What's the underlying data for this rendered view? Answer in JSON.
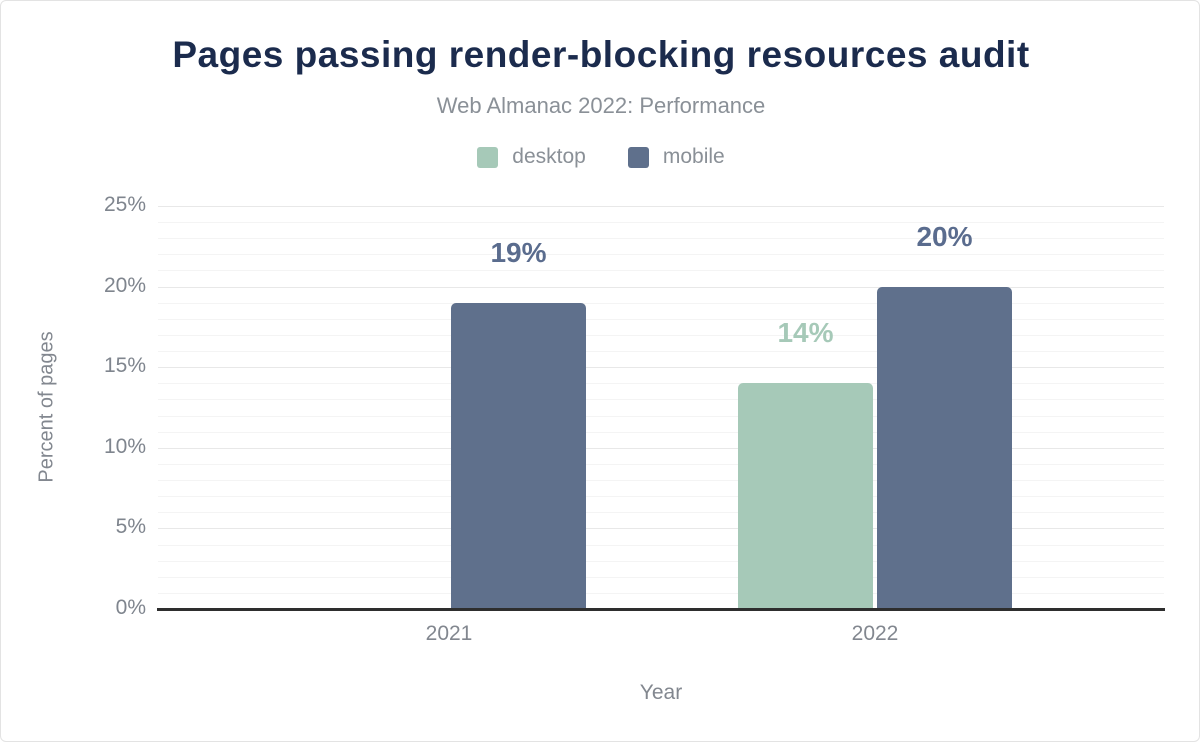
{
  "header": {
    "title": "Pages passing render-blocking resources audit",
    "subtitle": "Web Almanac 2022: Performance"
  },
  "colors": {
    "title": "#1b2b4d",
    "subtitle_gray": "#8a9097",
    "tick_gray": "#7f858e",
    "desktop": "#a6c9b8",
    "mobile": "#5f708c",
    "desktop_label": "#a6c9b8",
    "mobile_label": "#5a6c8e",
    "axis_line": "#2e2e2e",
    "grid_minor": "#f4f4f4",
    "grid_major": "#e8e8e8"
  },
  "chart_data": {
    "type": "bar",
    "title": "Pages passing render-blocking resources audit",
    "subtitle": "Web Almanac 2022: Performance",
    "categories": [
      "2021",
      "2022"
    ],
    "series": [
      {
        "name": "desktop",
        "color": "#a6c9b8",
        "label_color": "#a6c9b8",
        "values": [
          null,
          14
        ],
        "data_labels": [
          "",
          "14%"
        ]
      },
      {
        "name": "mobile",
        "color": "#5f708c",
        "label_color": "#5a6c8e",
        "values": [
          19,
          20
        ],
        "data_labels": [
          "19%",
          "20%"
        ]
      }
    ],
    "xlabel": "Year",
    "ylabel": "Percent of pages",
    "ylim": [
      0,
      25
    ],
    "yticks": [
      0,
      5,
      10,
      15,
      20,
      25
    ],
    "ytick_labels": [
      "0%",
      "5%",
      "10%",
      "15%",
      "20%",
      "25%"
    ],
    "grid": "horizontal minor lines every 1%, major lines every 5%",
    "legend_position": "top center"
  }
}
